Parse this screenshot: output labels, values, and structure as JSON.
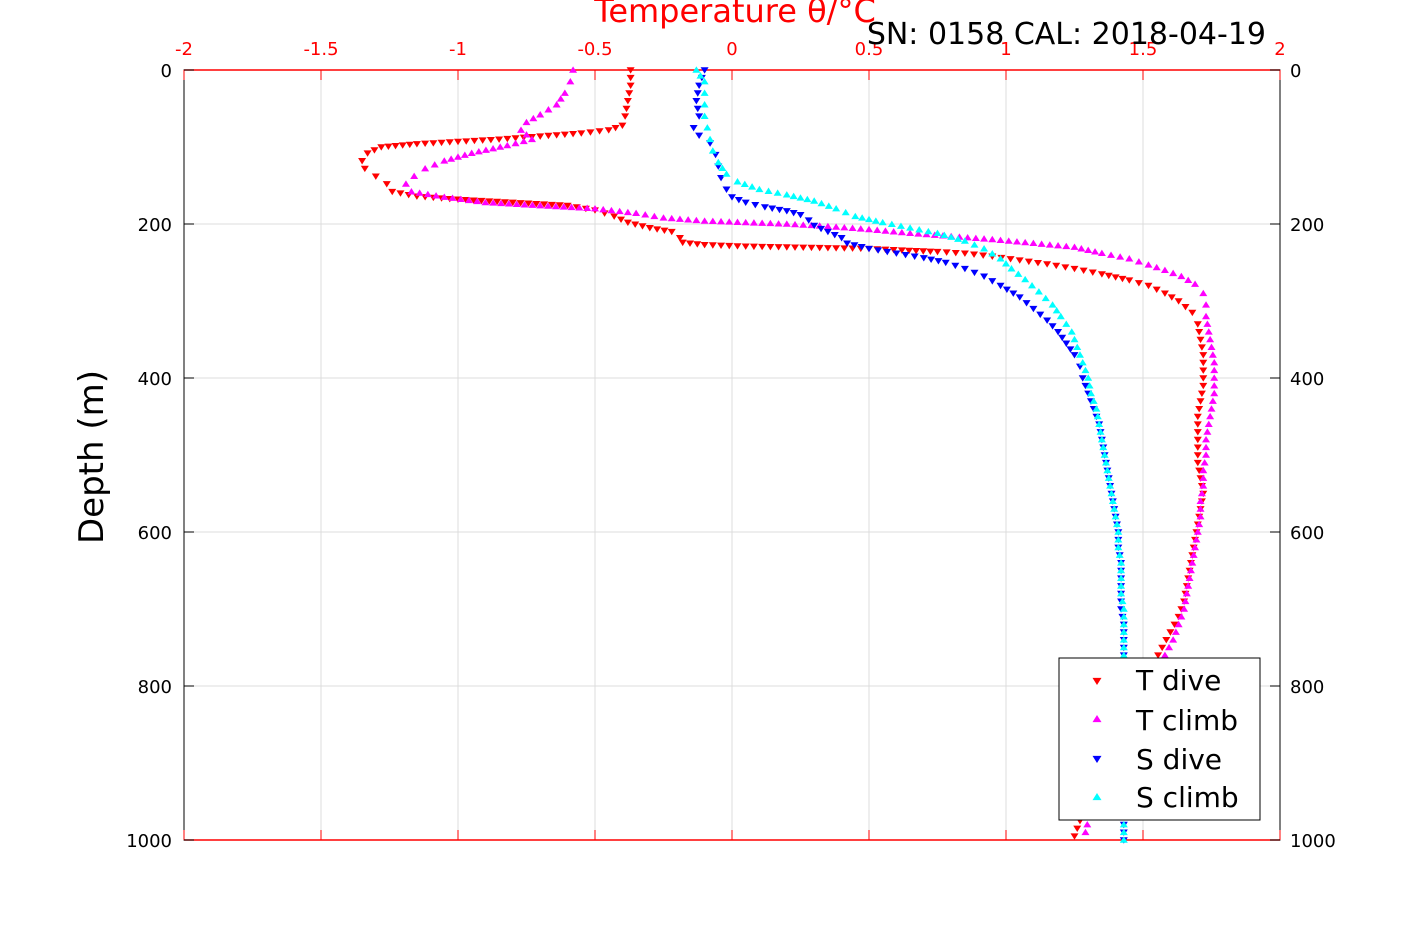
{
  "chart_data": {
    "type": "scatter",
    "title": "Temperature θ/°C",
    "annotation": "SN: 0158  CAL: 2018-04-19",
    "xlabel": "Temperature θ/°C",
    "ylabel": "Depth (m)",
    "xlim": [
      -2,
      2
    ],
    "ylim": [
      0,
      1000
    ],
    "y_reversed": true,
    "x_ticks": [
      "-2",
      "-1.5",
      "-1",
      "-0.5",
      "0",
      "0.5",
      "1",
      "1.5",
      "2"
    ],
    "x_tick_values": [
      -2,
      -1.5,
      -1,
      -0.5,
      0,
      0.5,
      1,
      1.5,
      2
    ],
    "y_ticks": [
      "0",
      "200",
      "400",
      "600",
      "800",
      "1000"
    ],
    "y_tick_values": [
      0,
      200,
      400,
      600,
      800,
      1000
    ],
    "grid": true,
    "legend_position": "bottom-right",
    "series": [
      {
        "name": "T dive",
        "color": "#ff0000",
        "marker": "triangle-down",
        "points": [
          [
            -0.37,
            0
          ],
          [
            -0.37,
            20
          ],
          [
            -0.38,
            40
          ],
          [
            -0.39,
            60
          ],
          [
            -0.4,
            72
          ],
          [
            -0.45,
            78
          ],
          [
            -0.55,
            82
          ],
          [
            -0.7,
            86
          ],
          [
            -0.85,
            90
          ],
          [
            -1.0,
            93
          ],
          [
            -1.15,
            96
          ],
          [
            -1.28,
            100
          ],
          [
            -1.33,
            108
          ],
          [
            -1.35,
            118
          ],
          [
            -1.34,
            128
          ],
          [
            -1.3,
            138
          ],
          [
            -1.26,
            148
          ],
          [
            -1.24,
            158
          ],
          [
            -1.15,
            164
          ],
          [
            -1.0,
            168
          ],
          [
            -0.8,
            172
          ],
          [
            -0.6,
            176
          ],
          [
            -0.5,
            182
          ],
          [
            -0.43,
            190
          ],
          [
            -0.38,
            198
          ],
          [
            -0.3,
            205
          ],
          [
            -0.22,
            210
          ],
          [
            -0.19,
            218
          ],
          [
            -0.18,
            224
          ],
          [
            -0.1,
            227
          ],
          [
            0.05,
            229
          ],
          [
            0.2,
            230
          ],
          [
            0.35,
            231
          ],
          [
            0.5,
            232
          ],
          [
            0.62,
            234
          ],
          [
            0.75,
            236
          ],
          [
            0.85,
            238
          ],
          [
            0.95,
            242
          ],
          [
            1.05,
            247
          ],
          [
            1.15,
            252
          ],
          [
            1.25,
            258
          ],
          [
            1.35,
            265
          ],
          [
            1.45,
            273
          ],
          [
            1.52,
            280
          ],
          [
            1.58,
            290
          ],
          [
            1.63,
            300
          ],
          [
            1.68,
            315
          ],
          [
            1.7,
            330
          ],
          [
            1.71,
            350
          ],
          [
            1.72,
            370
          ],
          [
            1.72,
            390
          ],
          [
            1.72,
            410
          ],
          [
            1.71,
            430
          ],
          [
            1.7,
            450
          ],
          [
            1.7,
            470
          ],
          [
            1.7,
            490
          ],
          [
            1.7,
            510
          ],
          [
            1.71,
            530
          ],
          [
            1.72,
            550
          ],
          [
            1.71,
            570
          ],
          [
            1.7,
            590
          ],
          [
            1.69,
            610
          ],
          [
            1.68,
            630
          ],
          [
            1.67,
            650
          ],
          [
            1.66,
            670
          ],
          [
            1.65,
            690
          ],
          [
            1.63,
            710
          ],
          [
            1.6,
            730
          ],
          [
            1.57,
            750
          ],
          [
            1.54,
            770
          ],
          [
            1.49,
            800
          ],
          [
            1.44,
            830
          ],
          [
            1.39,
            860
          ],
          [
            1.35,
            890
          ],
          [
            1.32,
            920
          ],
          [
            1.29,
            950
          ],
          [
            1.27,
            975
          ],
          [
            1.25,
            995
          ]
        ]
      },
      {
        "name": "T climb",
        "color": "#ff00ff",
        "marker": "triangle-up",
        "points": [
          [
            -0.58,
            0
          ],
          [
            -0.59,
            15
          ],
          [
            -0.61,
            30
          ],
          [
            -0.64,
            45
          ],
          [
            -0.7,
            58
          ],
          [
            -0.75,
            68
          ],
          [
            -0.77,
            78
          ],
          [
            -0.73,
            90
          ],
          [
            -0.82,
            98
          ],
          [
            -0.95,
            108
          ],
          [
            -1.05,
            118
          ],
          [
            -1.12,
            128
          ],
          [
            -1.16,
            138
          ],
          [
            -1.19,
            148
          ],
          [
            -1.17,
            158
          ],
          [
            -1.05,
            165
          ],
          [
            -0.9,
            172
          ],
          [
            -0.7,
            176
          ],
          [
            -0.5,
            180
          ],
          [
            -0.35,
            186
          ],
          [
            -0.25,
            192
          ],
          [
            -0.1,
            196
          ],
          [
            0.05,
            198
          ],
          [
            0.2,
            200
          ],
          [
            0.35,
            203
          ],
          [
            0.5,
            207
          ],
          [
            0.65,
            212
          ],
          [
            0.8,
            216
          ],
          [
            0.95,
            220
          ],
          [
            1.1,
            225
          ],
          [
            1.25,
            230
          ],
          [
            1.35,
            238
          ],
          [
            1.45,
            245
          ],
          [
            1.52,
            253
          ],
          [
            1.58,
            260
          ],
          [
            1.64,
            268
          ],
          [
            1.69,
            278
          ],
          [
            1.72,
            290
          ],
          [
            1.73,
            305
          ],
          [
            1.73,
            320
          ],
          [
            1.74,
            340
          ],
          [
            1.75,
            360
          ],
          [
            1.76,
            380
          ],
          [
            1.76,
            400
          ],
          [
            1.76,
            420
          ],
          [
            1.75,
            440
          ],
          [
            1.74,
            460
          ],
          [
            1.73,
            480
          ],
          [
            1.73,
            500
          ],
          [
            1.72,
            520
          ],
          [
            1.72,
            540
          ],
          [
            1.71,
            560
          ],
          [
            1.71,
            580
          ],
          [
            1.7,
            600
          ],
          [
            1.69,
            620
          ],
          [
            1.68,
            640
          ],
          [
            1.67,
            660
          ],
          [
            1.66,
            680
          ],
          [
            1.65,
            700
          ],
          [
            1.63,
            720
          ],
          [
            1.61,
            740
          ],
          [
            1.58,
            760
          ],
          [
            1.55,
            780
          ],
          [
            1.5,
            810
          ],
          [
            1.45,
            840
          ],
          [
            1.4,
            870
          ],
          [
            1.36,
            900
          ],
          [
            1.33,
            930
          ],
          [
            1.31,
            960
          ],
          [
            1.29,
            990
          ]
        ]
      },
      {
        "name": "S dive",
        "color": "#0000ff",
        "marker": "triangle-down",
        "points": [
          [
            -0.1,
            0
          ],
          [
            -0.12,
            20
          ],
          [
            -0.13,
            40
          ],
          [
            -0.12,
            60
          ],
          [
            -0.14,
            75
          ],
          [
            -0.12,
            85
          ],
          [
            -0.08,
            95
          ],
          [
            -0.06,
            110
          ],
          [
            -0.05,
            125
          ],
          [
            -0.04,
            140
          ],
          [
            -0.02,
            155
          ],
          [
            0.0,
            165
          ],
          [
            0.05,
            172
          ],
          [
            0.12,
            178
          ],
          [
            0.2,
            183
          ],
          [
            0.25,
            188
          ],
          [
            0.28,
            195
          ],
          [
            0.3,
            202
          ],
          [
            0.35,
            210
          ],
          [
            0.4,
            218
          ],
          [
            0.42,
            225
          ],
          [
            0.5,
            232
          ],
          [
            0.6,
            238
          ],
          [
            0.7,
            244
          ],
          [
            0.78,
            250
          ],
          [
            0.85,
            258
          ],
          [
            0.92,
            268
          ],
          [
            0.98,
            280
          ],
          [
            1.05,
            295
          ],
          [
            1.1,
            310
          ],
          [
            1.15,
            325
          ],
          [
            1.19,
            340
          ],
          [
            1.22,
            355
          ],
          [
            1.25,
            370
          ],
          [
            1.27,
            385
          ],
          [
            1.28,
            400
          ],
          [
            1.3,
            420
          ],
          [
            1.32,
            440
          ],
          [
            1.34,
            460
          ],
          [
            1.35,
            480
          ],
          [
            1.36,
            500
          ],
          [
            1.37,
            520
          ],
          [
            1.38,
            540
          ],
          [
            1.39,
            560
          ],
          [
            1.4,
            580
          ],
          [
            1.41,
            600
          ],
          [
            1.41,
            620
          ],
          [
            1.42,
            640
          ],
          [
            1.42,
            660
          ],
          [
            1.42,
            680
          ],
          [
            1.42,
            700
          ],
          [
            1.43,
            720
          ],
          [
            1.43,
            740
          ],
          [
            1.43,
            760
          ],
          [
            1.43,
            780
          ],
          [
            1.43,
            800
          ],
          [
            1.43,
            830
          ],
          [
            1.43,
            860
          ],
          [
            1.43,
            890
          ],
          [
            1.43,
            920
          ],
          [
            1.43,
            950
          ],
          [
            1.43,
            980
          ],
          [
            1.43,
            1000
          ]
        ]
      },
      {
        "name": "S climb",
        "color": "#00ffff",
        "marker": "triangle-up",
        "points": [
          [
            -0.13,
            0
          ],
          [
            -0.1,
            15
          ],
          [
            -0.1,
            30
          ],
          [
            -0.1,
            45
          ],
          [
            -0.1,
            60
          ],
          [
            -0.09,
            75
          ],
          [
            -0.08,
            90
          ],
          [
            -0.07,
            105
          ],
          [
            -0.05,
            120
          ],
          [
            -0.02,
            135
          ],
          [
            0.02,
            145
          ],
          [
            0.1,
            155
          ],
          [
            0.2,
            162
          ],
          [
            0.3,
            170
          ],
          [
            0.38,
            180
          ],
          [
            0.45,
            190
          ],
          [
            0.55,
            198
          ],
          [
            0.65,
            205
          ],
          [
            0.75,
            212
          ],
          [
            0.85,
            222
          ],
          [
            0.92,
            232
          ],
          [
            0.98,
            245
          ],
          [
            1.02,
            258
          ],
          [
            1.07,
            272
          ],
          [
            1.12,
            288
          ],
          [
            1.17,
            305
          ],
          [
            1.2,
            320
          ],
          [
            1.24,
            340
          ],
          [
            1.26,
            360
          ],
          [
            1.28,
            380
          ],
          [
            1.3,
            400
          ],
          [
            1.31,
            420
          ],
          [
            1.33,
            440
          ],
          [
            1.34,
            460
          ],
          [
            1.35,
            480
          ],
          [
            1.36,
            500
          ],
          [
            1.37,
            520
          ],
          [
            1.38,
            540
          ],
          [
            1.39,
            560
          ],
          [
            1.4,
            580
          ],
          [
            1.41,
            600
          ],
          [
            1.41,
            620
          ],
          [
            1.42,
            640
          ],
          [
            1.42,
            660
          ],
          [
            1.42,
            680
          ],
          [
            1.43,
            700
          ],
          [
            1.43,
            720
          ],
          [
            1.43,
            740
          ],
          [
            1.43,
            760
          ],
          [
            1.43,
            780
          ],
          [
            1.43,
            800
          ],
          [
            1.43,
            830
          ],
          [
            1.43,
            860
          ],
          [
            1.43,
            890
          ],
          [
            1.43,
            920
          ],
          [
            1.43,
            950
          ],
          [
            1.43,
            980
          ],
          [
            1.43,
            1000
          ]
        ]
      }
    ]
  }
}
